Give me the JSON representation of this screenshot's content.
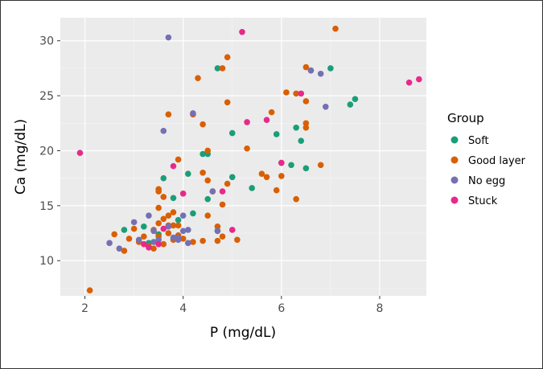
{
  "chart_data": {
    "type": "scatter",
    "xlabel": "P (mg/dL)",
    "ylabel": "Ca (mg/dL)",
    "xlim": [
      1.5,
      8.95
    ],
    "ylim": [
      6.8,
      32.1
    ],
    "xticks": [
      2,
      4,
      6,
      8
    ],
    "yticks": [
      10,
      15,
      20,
      25,
      30
    ],
    "grid": true,
    "legend": {
      "title": "Group",
      "placement": "right"
    },
    "series": [
      {
        "name": "Soft",
        "color": "#1b9e77",
        "points": [
          [
            2.8,
            12.8
          ],
          [
            3.2,
            13.1
          ],
          [
            3.3,
            11.6
          ],
          [
            3.5,
            12.4
          ],
          [
            3.6,
            17.5
          ],
          [
            3.8,
            15.7
          ],
          [
            3.9,
            13.7
          ],
          [
            4.1,
            17.9
          ],
          [
            4.2,
            14.3
          ],
          [
            4.4,
            19.7
          ],
          [
            4.5,
            19.7
          ],
          [
            4.5,
            15.6
          ],
          [
            4.7,
            12.7
          ],
          [
            4.7,
            27.5
          ],
          [
            5.0,
            21.6
          ],
          [
            5.0,
            17.6
          ],
          [
            5.4,
            16.6
          ],
          [
            5.9,
            21.5
          ],
          [
            6.0,
            18.9
          ],
          [
            6.2,
            18.7
          ],
          [
            6.3,
            22.1
          ],
          [
            6.4,
            20.9
          ],
          [
            6.5,
            18.4
          ],
          [
            6.6,
            27.3
          ],
          [
            7.0,
            27.5
          ],
          [
            7.4,
            24.2
          ],
          [
            7.5,
            24.7
          ]
        ]
      },
      {
        "name": "Good layer",
        "color": "#d95f02",
        "points": [
          [
            2.1,
            7.3
          ],
          [
            2.6,
            12.4
          ],
          [
            2.8,
            10.9
          ],
          [
            2.9,
            12.0
          ],
          [
            3.0,
            12.9
          ],
          [
            3.1,
            11.7
          ],
          [
            3.2,
            12.2
          ],
          [
            3.3,
            11.3
          ],
          [
            3.4,
            12.8
          ],
          [
            3.4,
            11.1
          ],
          [
            3.5,
            16.5
          ],
          [
            3.5,
            16.3
          ],
          [
            3.5,
            14.8
          ],
          [
            3.5,
            13.4
          ],
          [
            3.5,
            12.2
          ],
          [
            3.6,
            15.8
          ],
          [
            3.6,
            13.8
          ],
          [
            3.6,
            11.5
          ],
          [
            3.7,
            23.3
          ],
          [
            3.7,
            14.1
          ],
          [
            3.7,
            13.2
          ],
          [
            3.7,
            12.5
          ],
          [
            3.8,
            14.4
          ],
          [
            3.8,
            13.2
          ],
          [
            3.8,
            11.9
          ],
          [
            3.9,
            19.2
          ],
          [
            3.9,
            13.2
          ],
          [
            3.9,
            12.3
          ],
          [
            4.0,
            12.0
          ],
          [
            4.2,
            11.7
          ],
          [
            4.2,
            23.3
          ],
          [
            4.3,
            26.6
          ],
          [
            4.4,
            22.4
          ],
          [
            4.4,
            18.0
          ],
          [
            4.4,
            11.8
          ],
          [
            4.5,
            20.0
          ],
          [
            4.5,
            17.3
          ],
          [
            4.5,
            14.1
          ],
          [
            4.6,
            16.3
          ],
          [
            4.7,
            13.1
          ],
          [
            4.7,
            11.8
          ],
          [
            4.8,
            27.5
          ],
          [
            4.8,
            15.1
          ],
          [
            4.8,
            12.2
          ],
          [
            4.9,
            28.5
          ],
          [
            4.9,
            24.4
          ],
          [
            4.9,
            17.0
          ],
          [
            5.1,
            11.9
          ],
          [
            5.3,
            20.2
          ],
          [
            5.6,
            17.9
          ],
          [
            5.7,
            17.6
          ],
          [
            5.8,
            23.5
          ],
          [
            5.9,
            16.4
          ],
          [
            6.0,
            17.7
          ],
          [
            6.1,
            25.3
          ],
          [
            6.3,
            25.2
          ],
          [
            6.3,
            15.6
          ],
          [
            6.5,
            27.6
          ],
          [
            6.5,
            24.5
          ],
          [
            6.5,
            22.5
          ],
          [
            6.5,
            22.1
          ],
          [
            6.8,
            18.7
          ],
          [
            7.1,
            31.1
          ]
        ]
      },
      {
        "name": "No egg",
        "color": "#7570b3",
        "points": [
          [
            2.5,
            11.6
          ],
          [
            2.7,
            11.1
          ],
          [
            3.0,
            13.5
          ],
          [
            3.1,
            11.9
          ],
          [
            3.3,
            14.1
          ],
          [
            3.4,
            11.7
          ],
          [
            3.4,
            12.7
          ],
          [
            3.5,
            11.9
          ],
          [
            3.6,
            21.8
          ],
          [
            3.7,
            30.3
          ],
          [
            3.7,
            13.1
          ],
          [
            3.8,
            12.1
          ],
          [
            3.9,
            11.9
          ],
          [
            3.9,
            12.1
          ],
          [
            4.0,
            14.1
          ],
          [
            4.0,
            12.7
          ],
          [
            4.1,
            11.6
          ],
          [
            4.1,
            12.8
          ],
          [
            4.2,
            23.4
          ],
          [
            4.6,
            16.3
          ],
          [
            4.7,
            12.7
          ],
          [
            6.6,
            27.3
          ],
          [
            6.8,
            27.0
          ],
          [
            6.9,
            24.0
          ]
        ]
      },
      {
        "name": "Stuck",
        "color": "#e7298a",
        "points": [
          [
            1.9,
            19.8
          ],
          [
            3.2,
            11.5
          ],
          [
            3.3,
            11.2
          ],
          [
            3.5,
            11.5
          ],
          [
            3.6,
            12.9
          ],
          [
            3.8,
            18.6
          ],
          [
            4.0,
            16.1
          ],
          [
            4.8,
            16.3
          ],
          [
            5.0,
            12.8
          ],
          [
            5.2,
            30.8
          ],
          [
            5.3,
            22.6
          ],
          [
            5.7,
            22.8
          ],
          [
            6.0,
            18.9
          ],
          [
            6.4,
            25.2
          ],
          [
            8.6,
            26.2
          ],
          [
            8.8,
            26.5
          ]
        ]
      }
    ]
  }
}
